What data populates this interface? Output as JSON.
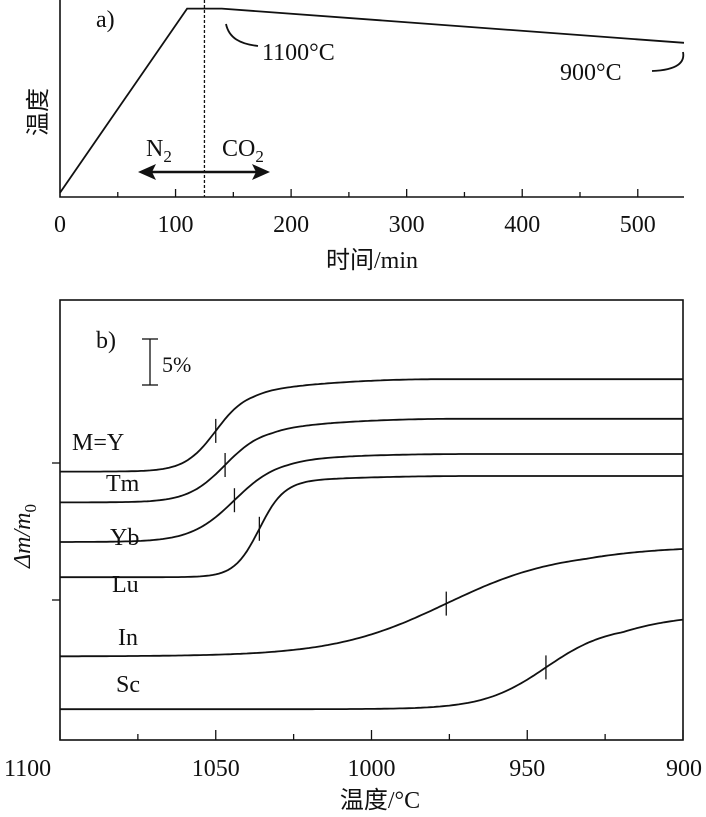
{
  "chart_data": [
    {
      "type": "line",
      "panel_label": "a)",
      "xlabel": "时间/min",
      "ylabel": "温度",
      "xlim": [
        0,
        540
      ],
      "xticks": [
        0,
        100,
        200,
        300,
        400,
        500
      ],
      "xtick_labels": [
        "0",
        "100",
        "200",
        "300",
        "400",
        "500"
      ],
      "ylim": [
        0,
        1150
      ],
      "series": [
        {
          "x": [
            0,
            110,
            140,
            540
          ],
          "y": [
            25,
            1100,
            1100,
            900
          ]
        }
      ],
      "switch_time": 125,
      "gas_before": "N",
      "gas_before_sub": "2",
      "gas_after": "CO",
      "gas_after_sub": "2",
      "annotations": [
        "1100°C",
        "900°C"
      ]
    },
    {
      "type": "line",
      "panel_label": "b)",
      "xlabel": "温度/°C",
      "ylabel": "Δm/m",
      "ylabel_sub": "0",
      "x_reversed": true,
      "xlim": [
        1100,
        900
      ],
      "xticks": [
        1100,
        1050,
        1000,
        950,
        900
      ],
      "xtick_labels": [
        "1100",
        "1050",
        "1000",
        "950",
        "900"
      ],
      "ylim": [
        0,
        100
      ],
      "scale_bar_label": "5%",
      "series": [
        {
          "name": "M=Y",
          "baseline": 61,
          "step": 18.5,
          "end": 82,
          "midpoint": 1050,
          "width": 5
        },
        {
          "name": "Tm",
          "baseline": 54,
          "step": 17.0,
          "end": 73,
          "midpoint": 1047,
          "width": 6
        },
        {
          "name": "Yb",
          "baseline": 45,
          "step": 19.0,
          "end": 65,
          "midpoint": 1044,
          "width": 7
        },
        {
          "name": "Lu",
          "baseline": 37,
          "step": 22.0,
          "end": 60,
          "midpoint": 1036,
          "width": 4
        },
        {
          "name": "In",
          "baseline": 19,
          "step": 24.0,
          "end": 44,
          "midpoint": 976,
          "width": 18
        },
        {
          "name": "Sc",
          "baseline": 7,
          "step": 19.0,
          "end": 29,
          "midpoint": 944,
          "width": 10
        }
      ]
    }
  ]
}
